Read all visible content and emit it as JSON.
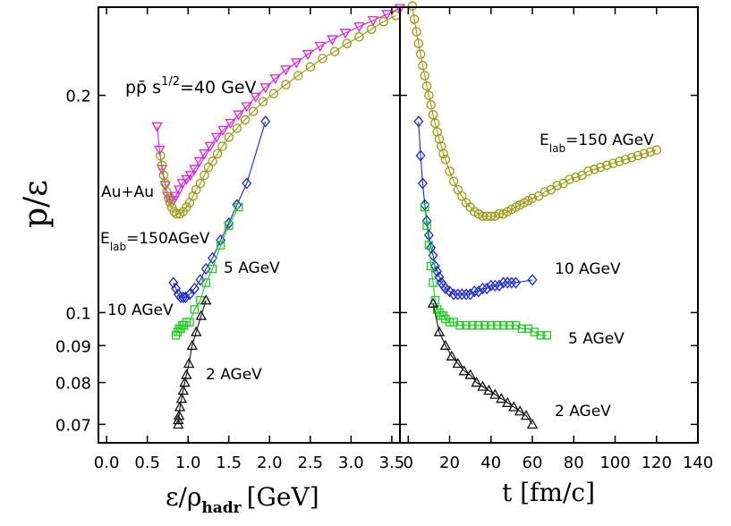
{
  "chart_data": {
    "type": "scatter",
    "ylabel": "p/ε",
    "y_scale": "log",
    "ylim": [
      0.066,
      0.265
    ],
    "y_ticks": [
      {
        "v": 0.07,
        "label": "0.07"
      },
      {
        "v": 0.08,
        "label": "0.08"
      },
      {
        "v": 0.09,
        "label": "0.09"
      },
      {
        "v": 0.1,
        "label": "0.1"
      },
      {
        "v": 0.2,
        "label": "0.2"
      }
    ],
    "panels": [
      {
        "id": "left",
        "xlabel_main": "ε/ρ",
        "xlabel_sub": "hadr",
        "xlabel_unit": "[GeV]",
        "xlim": [
          -0.1,
          3.6
        ],
        "x_ticks": [
          "0.0",
          "0.5",
          "1.0",
          "1.5",
          "2.0",
          "2.5",
          "3.0",
          "3.5"
        ],
        "annotations": [
          {
            "text": "pp̄ s^1/2=40 GeV",
            "parts": [
              "pp̄ s",
              "1/2",
              "=40 GeV"
            ]
          },
          {
            "text": "Au+Au"
          },
          {
            "text": "Elab=150AGeV",
            "parts": [
              "E",
              "lab",
              "=150AGeV"
            ]
          },
          {
            "text": "5 AGeV"
          },
          {
            "text": "10 AGeV"
          },
          {
            "text": "2 AGeV"
          }
        ],
        "series": [
          {
            "name": "pp̄ s^1/2=40 GeV",
            "marker": "triangle-down",
            "color": "#e020e0",
            "x": [
              0.62,
              0.65,
              0.68,
              0.72,
              0.75,
              0.78,
              0.82,
              0.85,
              0.89,
              0.93,
              0.98,
              1.03,
              1.08,
              1.14,
              1.2,
              1.27,
              1.35,
              1.43,
              1.52,
              1.62,
              1.72,
              1.83,
              1.95,
              2.07,
              2.2,
              2.33,
              2.47,
              2.62,
              2.77,
              2.93,
              3.1,
              3.27,
              3.44,
              3.6
            ],
            "y": [
              0.181,
              0.168,
              0.158,
              0.15,
              0.145,
              0.143,
              0.143,
              0.145,
              0.148,
              0.151,
              0.153,
              0.155,
              0.158,
              0.162,
              0.166,
              0.17,
              0.175,
              0.179,
              0.183,
              0.188,
              0.193,
              0.199,
              0.205,
              0.211,
              0.217,
              0.222,
              0.228,
              0.234,
              0.239,
              0.244,
              0.249,
              0.254,
              0.259,
              0.264
            ]
          },
          {
            "name": "Au+Au Elab=150AGeV",
            "marker": "circle",
            "color": "#9a9a10",
            "x": [
              0.66,
              0.68,
              0.7,
              0.72,
              0.74,
              0.76,
              0.78,
              0.8,
              0.83,
              0.86,
              0.9,
              0.94,
              0.98,
              1.02,
              1.06,
              1.1,
              1.15,
              1.2,
              1.25,
              1.3,
              1.36,
              1.42,
              1.5,
              1.6,
              1.7,
              1.8,
              1.92,
              2.05,
              2.2,
              2.35,
              2.5,
              2.65,
              2.8,
              2.95,
              3.1,
              3.25,
              3.4,
              3.55
            ],
            "y": [
              0.165,
              0.16,
              0.155,
              0.151,
              0.147,
              0.144,
              0.142,
              0.14,
              0.138,
              0.137,
              0.137,
              0.138,
              0.14,
              0.142,
              0.145,
              0.148,
              0.151,
              0.155,
              0.159,
              0.162,
              0.166,
              0.17,
              0.175,
              0.18,
              0.185,
              0.19,
              0.196,
              0.201,
              0.207,
              0.213,
              0.219,
              0.225,
              0.23,
              0.236,
              0.241,
              0.247,
              0.253,
              0.258
            ]
          },
          {
            "name": "10 AGeV",
            "marker": "diamond",
            "color": "#1a2acc",
            "x": [
              0.82,
              0.85,
              0.88,
              0.91,
              0.94,
              0.97,
              1.02,
              1.08,
              1.15,
              1.22,
              1.3,
              1.4,
              1.5,
              1.6,
              1.72,
              1.95
            ],
            "y": [
              0.11,
              0.108,
              0.106,
              0.105,
              0.105,
              0.105,
              0.106,
              0.108,
              0.111,
              0.115,
              0.119,
              0.126,
              0.133,
              0.141,
              0.151,
              0.184
            ]
          },
          {
            "name": "5 AGeV",
            "marker": "square",
            "color": "#22cc22",
            "x": [
              0.85,
              0.87,
              0.89,
              0.91,
              0.93,
              0.95,
              0.98,
              1.02,
              1.08,
              1.15,
              1.22,
              1.3,
              1.4,
              1.5,
              1.62
            ],
            "y": [
              0.093,
              0.094,
              0.095,
              0.095,
              0.096,
              0.096,
              0.097,
              0.097,
              0.101,
              0.104,
              0.11,
              0.115,
              0.124,
              0.132,
              0.14
            ]
          },
          {
            "name": "2 AGeV",
            "marker": "triangle-up",
            "color": "#111111",
            "x": [
              0.88,
              0.88,
              0.89,
              0.9,
              0.92,
              0.94,
              0.96,
              0.98,
              1.01,
              1.05,
              1.1,
              1.16,
              1.22
            ],
            "y": [
              0.07,
              0.071,
              0.072,
              0.074,
              0.076,
              0.078,
              0.08,
              0.082,
              0.085,
              0.09,
              0.094,
              0.099,
              0.104
            ]
          }
        ]
      },
      {
        "id": "right",
        "xlabel": "t [fm/c]",
        "xlim": [
          -4,
          140
        ],
        "x_ticks": [
          "0",
          "20",
          "40",
          "60",
          "80",
          "100",
          "120",
          "140"
        ],
        "annotations": [
          {
            "text": "Elab=150 AGeV",
            "parts": [
              "E",
              "lab",
              "=150 AGeV"
            ]
          },
          {
            "text": "10 AGeV"
          },
          {
            "text": "5 AGeV"
          },
          {
            "text": "2 AGeV"
          }
        ],
        "series": [
          {
            "name": "Au+Au Elab=150 AGeV",
            "marker": "circle",
            "color": "#9a9a10",
            "x": [
              2,
              3,
              4,
              5,
              6,
              7,
              8,
              9,
              10,
              11,
              12,
              13,
              14,
              15,
              16,
              17,
              18,
              20,
              22,
              24,
              26,
              28,
              30,
              32,
              34,
              36,
              38,
              40,
              42,
              44,
              46,
              48,
              50,
              52,
              54,
              56,
              58,
              60,
              63,
              66,
              69,
              72,
              75,
              78,
              81,
              84,
              87,
              90,
              93,
              96,
              99,
              102,
              105,
              108,
              111,
              114,
              117,
              120
            ],
            "y": [
              0.266,
              0.255,
              0.245,
              0.236,
              0.228,
              0.22,
              0.213,
              0.206,
              0.2,
              0.194,
              0.188,
              0.183,
              0.178,
              0.174,
              0.17,
              0.166,
              0.163,
              0.157,
              0.152,
              0.148,
              0.145,
              0.142,
              0.14,
              0.138,
              0.137,
              0.136,
              0.136,
              0.136,
              0.136,
              0.137,
              0.137,
              0.138,
              0.139,
              0.14,
              0.141,
              0.142,
              0.143,
              0.144,
              0.145,
              0.147,
              0.148,
              0.15,
              0.151,
              0.153,
              0.154,
              0.155,
              0.157,
              0.158,
              0.159,
              0.16,
              0.161,
              0.162,
              0.163,
              0.164,
              0.165,
              0.166,
              0.167,
              0.168
            ]
          },
          {
            "name": "10 AGeV",
            "marker": "diamond",
            "color": "#1a2acc",
            "x": [
              5,
              6,
              7,
              8,
              9,
              10,
              11,
              12,
              13,
              14,
              15,
              16,
              17,
              18,
              20,
              22,
              24,
              26,
              28,
              30,
              32,
              34,
              36,
              38,
              40,
              42,
              44,
              46,
              48,
              50,
              52,
              60
            ],
            "y": [
              0.184,
              0.165,
              0.151,
              0.141,
              0.134,
              0.128,
              0.123,
              0.12,
              0.116,
              0.114,
              0.112,
              0.11,
              0.109,
              0.108,
              0.107,
              0.106,
              0.106,
              0.106,
              0.106,
              0.106,
              0.107,
              0.107,
              0.108,
              0.108,
              0.109,
              0.109,
              0.109,
              0.11,
              0.11,
              0.11,
              0.11,
              0.111
            ]
          },
          {
            "name": "5 AGeV",
            "marker": "square",
            "color": "#22cc22",
            "x": [
              8,
              9,
              10,
              11,
              12,
              13,
              14,
              15,
              16,
              17,
              18,
              20,
              22,
              25,
              28,
              31,
              34,
              37,
              40,
              43,
              46,
              49,
              52,
              55,
              58,
              61,
              64,
              67
            ],
            "y": [
              0.14,
              0.132,
              0.124,
              0.116,
              0.11,
              0.104,
              0.101,
              0.1,
              0.099,
              0.099,
              0.098,
              0.097,
              0.097,
              0.096,
              0.096,
              0.096,
              0.096,
              0.096,
              0.096,
              0.096,
              0.096,
              0.096,
              0.096,
              0.095,
              0.095,
              0.094,
              0.093,
              0.093
            ]
          },
          {
            "name": "2 AGeV",
            "marker": "triangle-up",
            "color": "#111111",
            "x": [
              12,
              15,
              18,
              21,
              24,
              27,
              30,
              33,
              36,
              39,
              42,
              45,
              48,
              51,
              54,
              57,
              60
            ],
            "y": [
              0.103,
              0.094,
              0.09,
              0.087,
              0.085,
              0.083,
              0.082,
              0.08,
              0.079,
              0.078,
              0.077,
              0.076,
              0.075,
              0.074,
              0.073,
              0.072,
              0.07
            ]
          }
        ]
      }
    ]
  }
}
